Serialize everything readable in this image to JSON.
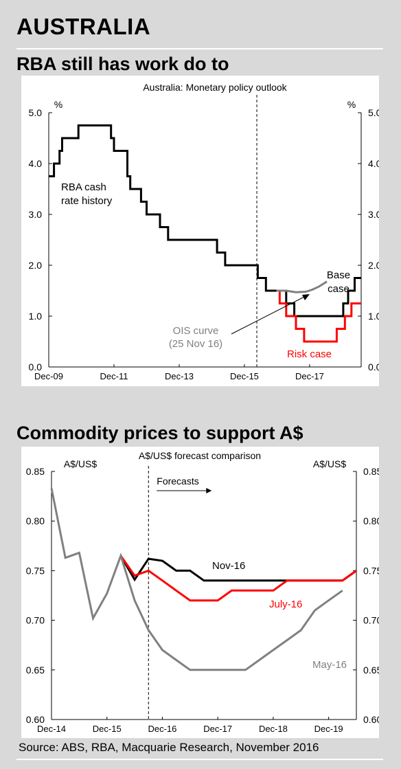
{
  "page": {
    "title": "AUSTRALIA",
    "section1_heading": "RBA still has work do to",
    "section2_heading": "Commodity prices to support A$",
    "source": "Source: ABS, RBA, Macquarie Research, November 2016"
  },
  "chart_data": [
    {
      "type": "line",
      "title": "Australia: Monetary policy outlook",
      "ylabel_left": "%",
      "ylabel_right": "%",
      "x_ticks": [
        "Dec-09",
        "Dec-11",
        "Dec-13",
        "Dec-15",
        "Dec-17"
      ],
      "x_tick_values": [
        2009.92,
        2011.92,
        2013.92,
        2015.92,
        2017.92
      ],
      "xlim": [
        2009.92,
        2019.5
      ],
      "ylim": [
        0,
        5
      ],
      "y_ticks": [
        "0.0",
        "1.0",
        "2.0",
        "3.0",
        "4.0",
        "5.0"
      ],
      "forecast_divider_x": 2016.3,
      "series": [
        {
          "name": "RBA cash rate history",
          "color": "#000000",
          "points": [
            [
              2009.92,
              3.75
            ],
            [
              2010.08,
              3.75
            ],
            [
              2010.08,
              4.0
            ],
            [
              2010.25,
              4.0
            ],
            [
              2010.25,
              4.25
            ],
            [
              2010.33,
              4.25
            ],
            [
              2010.33,
              4.5
            ],
            [
              2010.83,
              4.5
            ],
            [
              2010.83,
              4.75
            ],
            [
              2011.83,
              4.75
            ],
            [
              2011.83,
              4.5
            ],
            [
              2011.92,
              4.5
            ],
            [
              2011.92,
              4.25
            ],
            [
              2012.33,
              4.25
            ],
            [
              2012.33,
              3.75
            ],
            [
              2012.42,
              3.75
            ],
            [
              2012.42,
              3.5
            ],
            [
              2012.75,
              3.5
            ],
            [
              2012.75,
              3.25
            ],
            [
              2012.92,
              3.25
            ],
            [
              2012.92,
              3.0
            ],
            [
              2013.33,
              3.0
            ],
            [
              2013.33,
              2.75
            ],
            [
              2013.58,
              2.75
            ],
            [
              2013.58,
              2.5
            ],
            [
              2015.08,
              2.5
            ],
            [
              2015.08,
              2.25
            ],
            [
              2015.33,
              2.25
            ],
            [
              2015.33,
              2.0
            ],
            [
              2016.33,
              2.0
            ],
            [
              2016.33,
              1.75
            ],
            [
              2016.58,
              1.75
            ],
            [
              2016.58,
              1.5
            ],
            [
              2016.9,
              1.5
            ]
          ]
        },
        {
          "name": "Base case",
          "color": "#000000",
          "points": [
            [
              2016.9,
              1.5
            ],
            [
              2017.2,
              1.5
            ],
            [
              2017.2,
              1.25
            ],
            [
              2017.45,
              1.25
            ],
            [
              2017.45,
              1.0
            ],
            [
              2018.95,
              1.0
            ],
            [
              2018.95,
              1.25
            ],
            [
              2019.1,
              1.25
            ],
            [
              2019.1,
              1.5
            ],
            [
              2019.3,
              1.5
            ],
            [
              2019.3,
              1.75
            ],
            [
              2019.5,
              1.75
            ]
          ]
        },
        {
          "name": "Risk case",
          "color": "#ff0000",
          "points": [
            [
              2016.9,
              1.5
            ],
            [
              2017.0,
              1.5
            ],
            [
              2017.0,
              1.25
            ],
            [
              2017.2,
              1.25
            ],
            [
              2017.2,
              1.0
            ],
            [
              2017.5,
              1.0
            ],
            [
              2017.5,
              0.75
            ],
            [
              2017.75,
              0.75
            ],
            [
              2017.75,
              0.5
            ],
            [
              2018.75,
              0.5
            ],
            [
              2018.75,
              0.75
            ],
            [
              2019.0,
              0.75
            ],
            [
              2019.0,
              1.0
            ],
            [
              2019.2,
              1.0
            ],
            [
              2019.2,
              1.25
            ],
            [
              2019.5,
              1.25
            ]
          ]
        },
        {
          "name": "OIS curve (25 Nov 16)",
          "color": "#808080",
          "points": [
            [
              2016.9,
              1.5
            ],
            [
              2017.2,
              1.5
            ],
            [
              2017.5,
              1.47
            ],
            [
              2017.8,
              1.48
            ],
            [
              2018.0,
              1.52
            ],
            [
              2018.2,
              1.58
            ],
            [
              2018.45,
              1.68
            ]
          ]
        }
      ],
      "annotations": {
        "history_label": [
          "RBA cash",
          "rate history"
        ],
        "base_label": [
          "Base",
          "case"
        ],
        "risk_label": "Risk case",
        "ois_label": [
          "OIS curve",
          "(25 Nov 16)"
        ]
      }
    },
    {
      "type": "line",
      "title": "A$/US$ forecast comparison",
      "ylabel_left": "A$/US$",
      "ylabel_right": "A$/US$",
      "x_ticks": [
        "Dec-14",
        "Dec-15",
        "Dec-16",
        "Dec-17",
        "Dec-18",
        "Dec-19"
      ],
      "x_tick_values": [
        0,
        4,
        8,
        12,
        16,
        20
      ],
      "xlim": [
        0,
        22
      ],
      "ylim": [
        0.6,
        0.85
      ],
      "y_ticks": [
        "0.60",
        "0.65",
        "0.70",
        "0.75",
        "0.80",
        "0.85"
      ],
      "forecast_divider_x": 7,
      "forecast_label": "Forecasts",
      "series": [
        {
          "name": "Nov-16",
          "color": "#000000",
          "points": [
            [
              5,
              0.765
            ],
            [
              6,
              0.741
            ],
            [
              7,
              0.762
            ],
            [
              8,
              0.76
            ],
            [
              9,
              0.75
            ],
            [
              10,
              0.75
            ],
            [
              11,
              0.74
            ],
            [
              12,
              0.74
            ],
            [
              13,
              0.74
            ],
            [
              14,
              0.74
            ],
            [
              15,
              0.74
            ],
            [
              16,
              0.74
            ],
            [
              17,
              0.74
            ],
            [
              18,
              0.74
            ],
            [
              19,
              0.74
            ],
            [
              20,
              0.74
            ],
            [
              21,
              0.74
            ],
            [
              22,
              0.75
            ]
          ]
        },
        {
          "name": "July-16",
          "color": "#ff0000",
          "points": [
            [
              5,
              0.765
            ],
            [
              6,
              0.745
            ],
            [
              7,
              0.75
            ],
            [
              8,
              0.74
            ],
            [
              9,
              0.73
            ],
            [
              10,
              0.72
            ],
            [
              11,
              0.72
            ],
            [
              12,
              0.72
            ],
            [
              13,
              0.73
            ],
            [
              14,
              0.73
            ],
            [
              15,
              0.73
            ],
            [
              16,
              0.73
            ],
            [
              17,
              0.74
            ],
            [
              18,
              0.74
            ],
            [
              19,
              0.74
            ],
            [
              20,
              0.74
            ],
            [
              21,
              0.74
            ],
            [
              22,
              0.75
            ]
          ]
        },
        {
          "name": "May-16",
          "color": "#808080",
          "points": [
            [
              0,
              0.833
            ],
            [
              1,
              0.763
            ],
            [
              2,
              0.768
            ],
            [
              3,
              0.702
            ],
            [
              4,
              0.727
            ],
            [
              5,
              0.765
            ],
            [
              6,
              0.72
            ],
            [
              7,
              0.69
            ],
            [
              8,
              0.67
            ],
            [
              9,
              0.66
            ],
            [
              10,
              0.65
            ],
            [
              11,
              0.65
            ],
            [
              12,
              0.65
            ],
            [
              13,
              0.65
            ],
            [
              14,
              0.65
            ],
            [
              15,
              0.66
            ],
            [
              16,
              0.67
            ],
            [
              17,
              0.68
            ],
            [
              18,
              0.69
            ],
            [
              19,
              0.71
            ],
            [
              20,
              0.72
            ],
            [
              21,
              0.73
            ]
          ]
        }
      ]
    }
  ]
}
